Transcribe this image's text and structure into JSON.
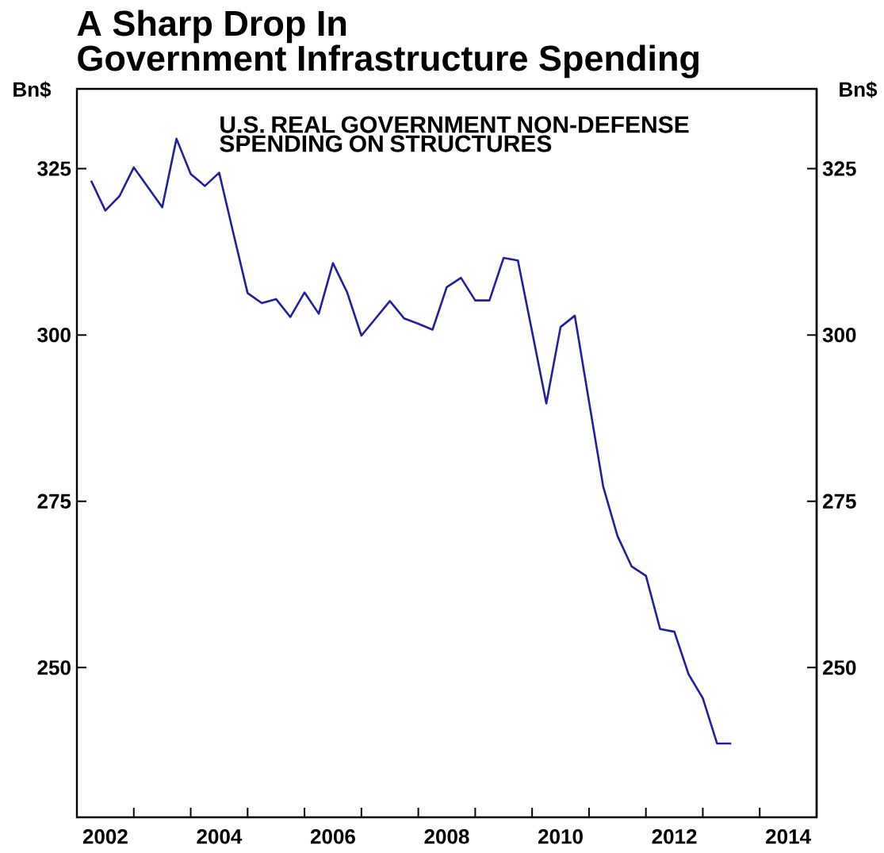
{
  "chart_data": {
    "type": "line",
    "title": "A Sharp Drop In",
    "subtitle": "Government Infrastructure Spending",
    "ylabel": "Bn$",
    "y2label": "Bn$",
    "annotations": [
      "U.S. REAL GOVERNMENT NON-DEFENSE SPENDING ON STRUCTURES"
    ],
    "color": "#1f1fa0",
    "x": [
      2002.25,
      2002.5,
      2002.75,
      2003,
      2003.25,
      2003.5,
      2003.75,
      2004,
      2004.25,
      2004.5,
      2004.75,
      2005,
      2005.25,
      2005.5,
      2005.75,
      2006,
      2006.25,
      2006.5,
      2006.75,
      2007,
      2007.25,
      2007.5,
      2007.75,
      2008,
      2008.25,
      2008.5,
      2008.75,
      2009,
      2009.25,
      2009.5,
      2009.75,
      2010,
      2010.25,
      2010.5,
      2010.75,
      2011,
      2011.25,
      2011.5,
      2011.75,
      2012,
      2012.25,
      2012.5,
      2012.75,
      2013,
      2013.25,
      2013.5
    ],
    "values": [
      323.2,
      318.7,
      320.9,
      325.2,
      322.2,
      319.2,
      329.5,
      324.2,
      322.4,
      324.4,
      315.3,
      306.3,
      304.8,
      305.4,
      302.7,
      306.4,
      303.2,
      310.8,
      306.4,
      299.9,
      302.5,
      305.1,
      302.5,
      301.7,
      300.8,
      307.2,
      308.6,
      305.2,
      305.2,
      311.6,
      311.2,
      300.5,
      289.7,
      301.2,
      302.9,
      290.0,
      277.2,
      269.8,
      265.2,
      263.8,
      255.8,
      255.4,
      249.0,
      245.4,
      238.6,
      238.6
    ],
    "xlim": [
      2002,
      2015
    ],
    "xticks": [
      {
        "value": 2002.5,
        "label": "2002"
      },
      {
        "value": 2004.5,
        "label": "2004"
      },
      {
        "value": 2006.5,
        "label": "2006"
      },
      {
        "value": 2008.5,
        "label": "2008"
      },
      {
        "value": 2010.5,
        "label": "2010"
      },
      {
        "value": 2012.5,
        "label": "2012"
      },
      {
        "value": 2014.5,
        "label": "2014"
      },
      {
        "value": 2003,
        "label": null
      },
      {
        "value": 2004,
        "label": null
      },
      {
        "value": 2005,
        "label": null
      },
      {
        "value": 2006,
        "label": null
      },
      {
        "value": 2007,
        "label": null
      },
      {
        "value": 2008,
        "label": null
      },
      {
        "value": 2009,
        "label": null
      },
      {
        "value": 2010,
        "label": null
      },
      {
        "value": 2011,
        "label": null
      },
      {
        "value": 2012,
        "label": null
      },
      {
        "value": 2013,
        "label": null
      },
      {
        "value": 2014,
        "label": null
      }
    ],
    "ylim": [
      227.5,
      337
    ],
    "yticks": [
      250,
      275,
      300,
      325
    ],
    "y2lim": [
      227.5,
      337
    ],
    "y2ticks": [
      250,
      275,
      300,
      325
    ]
  }
}
